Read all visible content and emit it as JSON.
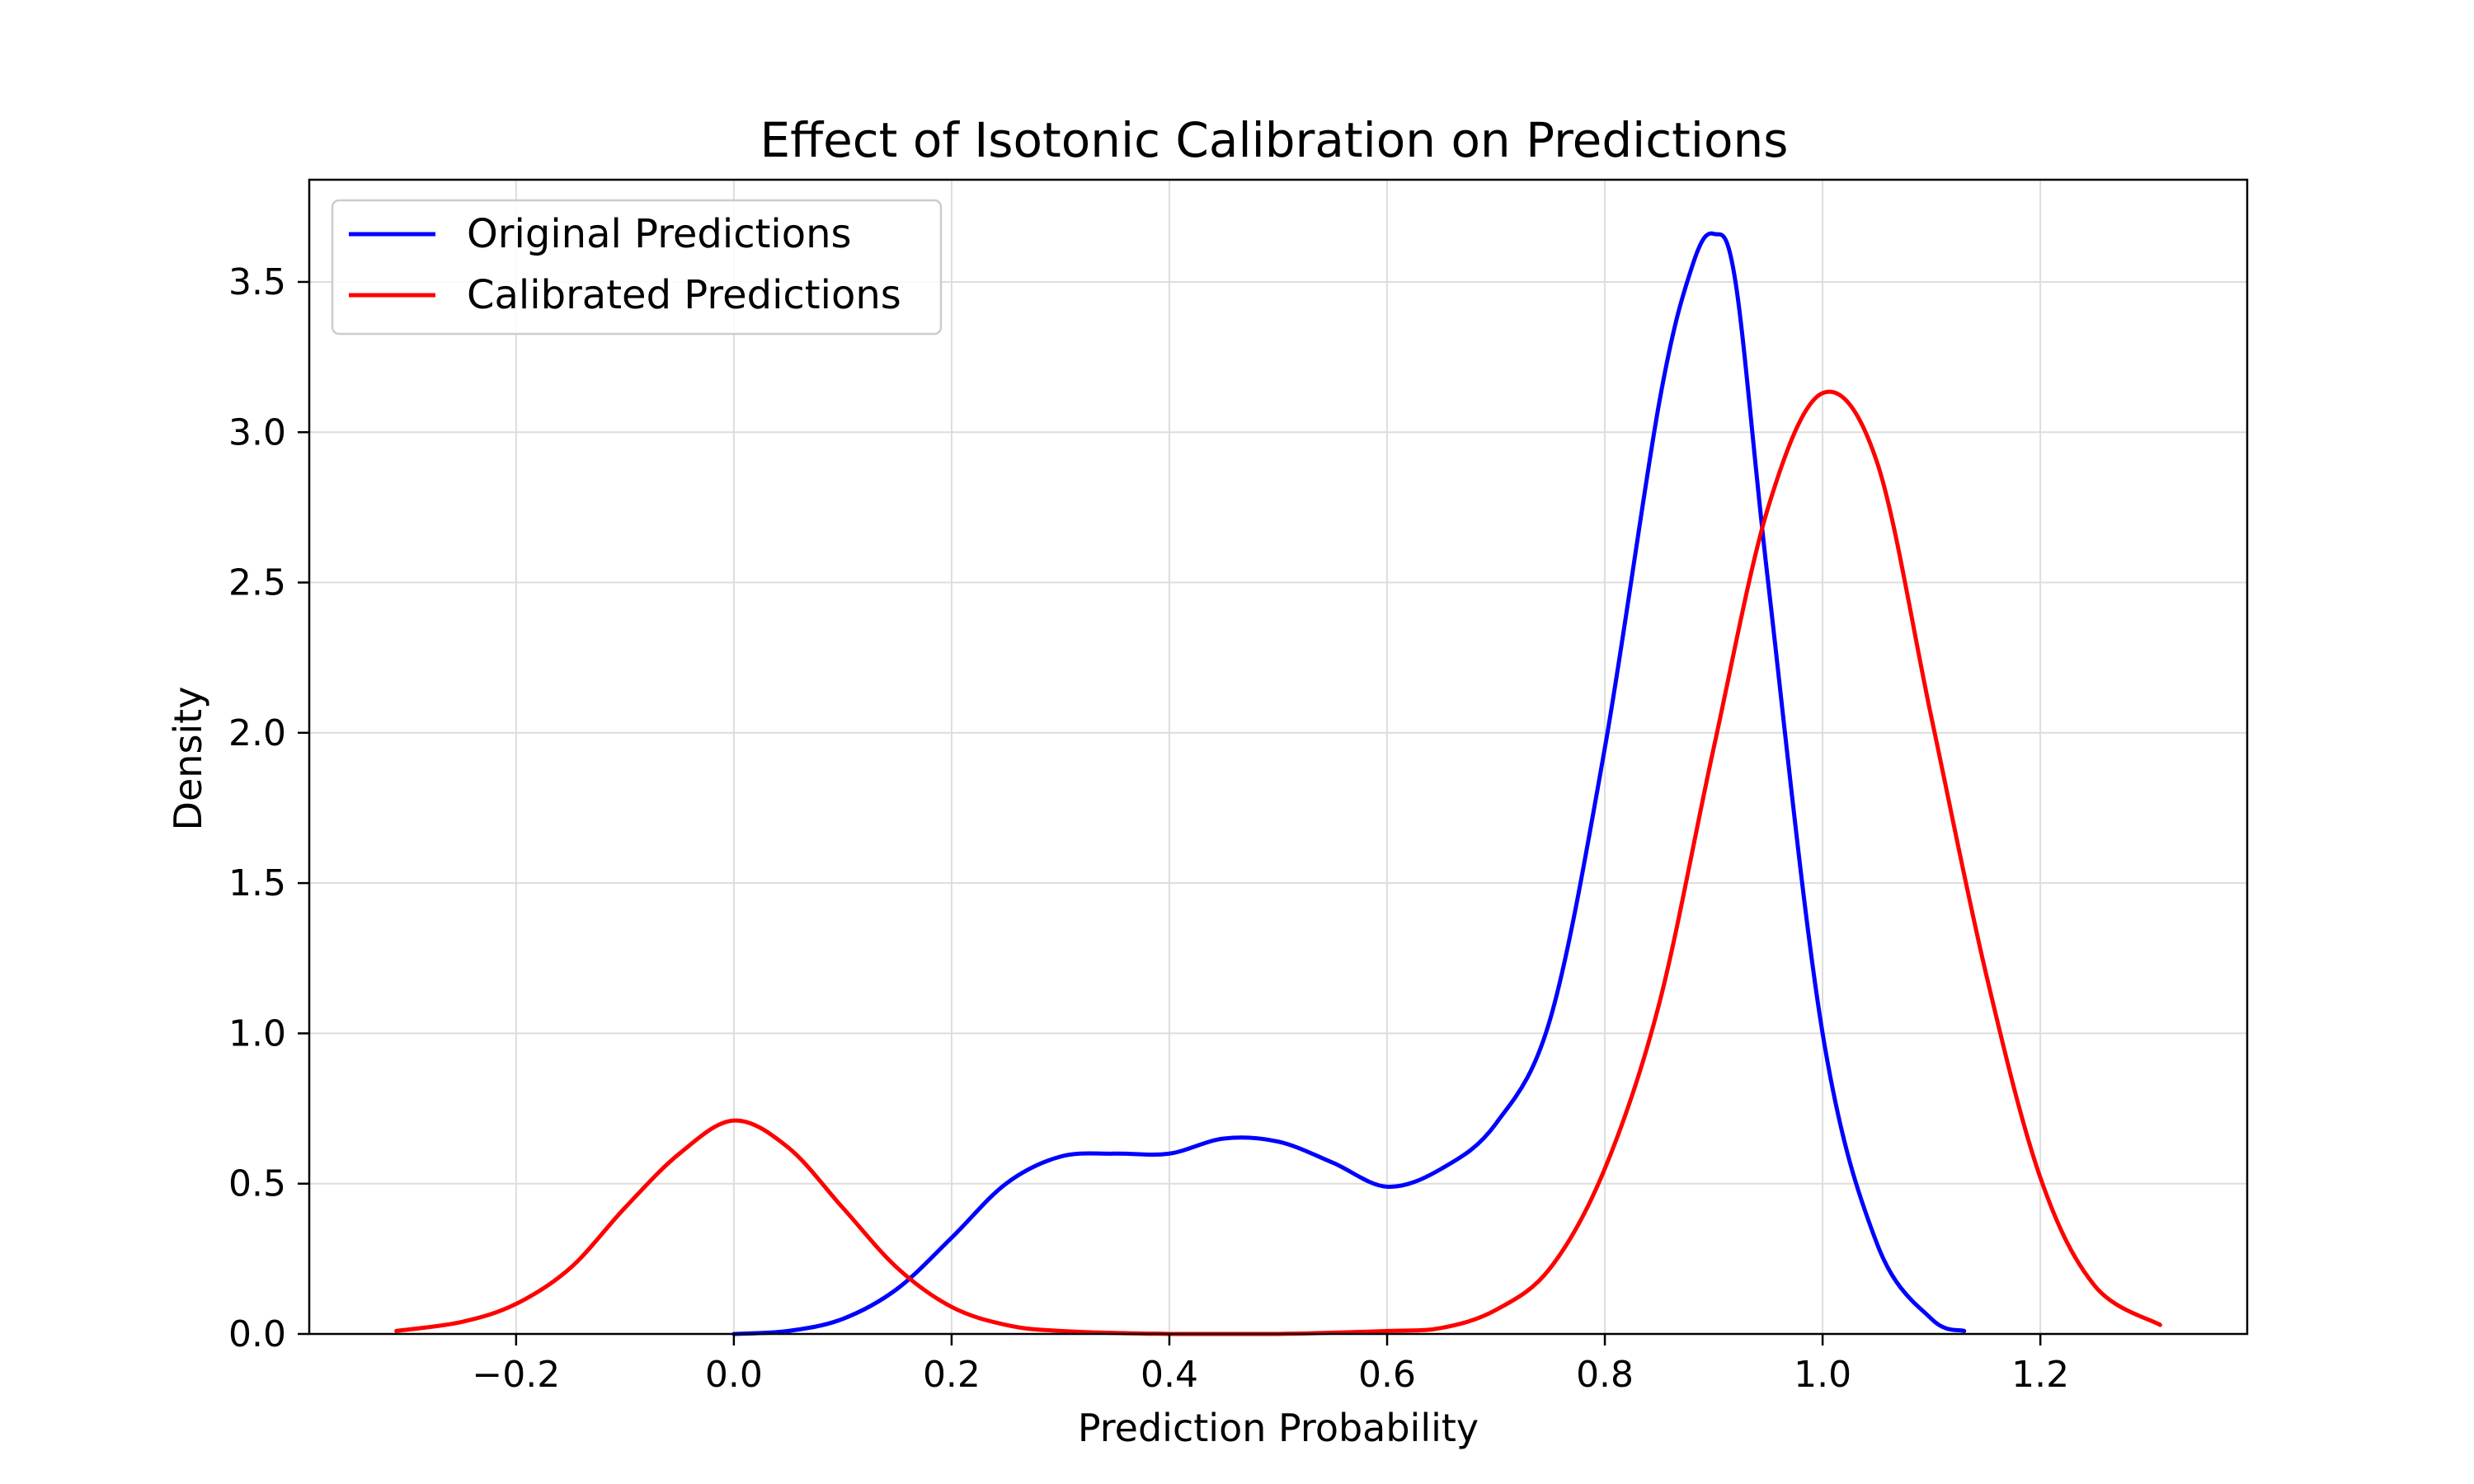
{
  "chart_data": {
    "type": "line",
    "title": "Effect of Isotonic Calibration on Predictions",
    "xlabel": "Prediction Probability",
    "ylabel": "Density",
    "xlim": [
      -0.39,
      1.39
    ],
    "ylim": [
      0.0,
      3.84
    ],
    "xticks": [
      -0.2,
      0.0,
      0.2,
      0.4,
      0.6,
      0.8,
      1.0,
      1.2
    ],
    "xtick_labels": [
      "−0.2",
      "0.0",
      "0.2",
      "0.4",
      "0.6",
      "0.8",
      "1.0",
      "1.2"
    ],
    "yticks": [
      0.0,
      0.5,
      1.0,
      1.5,
      2.0,
      2.5,
      3.0,
      3.5
    ],
    "ytick_labels": [
      "0.0",
      "0.5",
      "1.0",
      "1.5",
      "2.0",
      "2.5",
      "3.0",
      "3.5"
    ],
    "grid": true,
    "legend_position": "top-left",
    "series": [
      {
        "name": "Original Predictions",
        "color": "#0000ff",
        "x": [
          0.0,
          0.05,
          0.1,
          0.15,
          0.2,
          0.25,
          0.3,
          0.35,
          0.4,
          0.45,
          0.5,
          0.55,
          0.6,
          0.65,
          0.7,
          0.75,
          0.8,
          0.85,
          0.88,
          0.9,
          0.92,
          0.95,
          1.0,
          1.05,
          1.1,
          1.13
        ],
        "y": [
          0.0,
          0.01,
          0.05,
          0.15,
          0.32,
          0.5,
          0.59,
          0.6,
          0.6,
          0.65,
          0.64,
          0.57,
          0.49,
          0.55,
          0.7,
          1.05,
          1.95,
          3.1,
          3.55,
          3.66,
          3.5,
          2.5,
          1.0,
          0.3,
          0.05,
          0.01
        ]
      },
      {
        "name": "Calibrated Predictions",
        "color": "#ff0000",
        "x": [
          -0.31,
          -0.25,
          -0.2,
          -0.15,
          -0.1,
          -0.05,
          0.0,
          0.05,
          0.1,
          0.15,
          0.2,
          0.25,
          0.3,
          0.4,
          0.5,
          0.6,
          0.65,
          0.7,
          0.75,
          0.8,
          0.85,
          0.9,
          0.95,
          1.0,
          1.05,
          1.1,
          1.15,
          1.2,
          1.25,
          1.31
        ],
        "y": [
          0.01,
          0.04,
          0.1,
          0.22,
          0.42,
          0.6,
          0.71,
          0.62,
          0.42,
          0.22,
          0.09,
          0.03,
          0.01,
          0.0,
          0.0,
          0.01,
          0.02,
          0.08,
          0.22,
          0.55,
          1.1,
          1.95,
          2.75,
          3.13,
          2.9,
          2.05,
          1.2,
          0.52,
          0.16,
          0.03
        ]
      }
    ]
  }
}
